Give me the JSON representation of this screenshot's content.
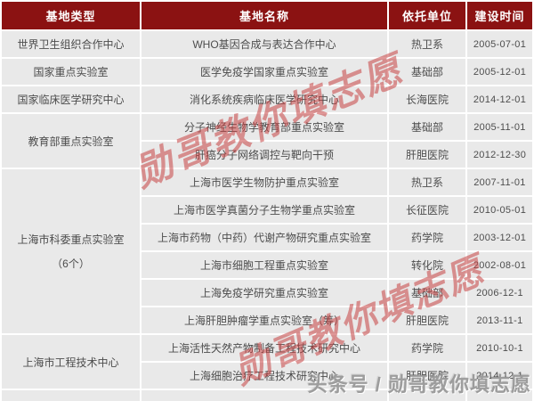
{
  "table": {
    "columns": [
      {
        "label": "基地类型"
      },
      {
        "label": "基地名称"
      },
      {
        "label": "依托单位"
      },
      {
        "label": "建设时间"
      }
    ],
    "groups": [
      {
        "type_lines": [
          "世界卫生组织合作中心"
        ],
        "rows": [
          {
            "name": "WHO基因合成与表达合作中心",
            "unit": "热卫系",
            "date": "2005-07-01"
          }
        ]
      },
      {
        "type_lines": [
          "国家重点实验室"
        ],
        "rows": [
          {
            "name": "医学免疫学国家重点实验室",
            "unit": "基础部",
            "date": "2005-12-01"
          }
        ]
      },
      {
        "type_lines": [
          "国家临床医学研究中心"
        ],
        "rows": [
          {
            "name": "消化系统疾病临床医学研究中心",
            "unit": "长海医院",
            "date": "2014-12-01"
          }
        ]
      },
      {
        "type_lines": [
          "教育部重点实验室"
        ],
        "rows": [
          {
            "name": "分子神经生物学教育部重点实验室",
            "unit": "基础部",
            "date": "2005-11-01"
          },
          {
            "name": "肝癌分子网络调控与靶向干预",
            "unit": "肝胆医院",
            "date": "2012-12-30"
          }
        ]
      },
      {
        "type_lines": [
          "上海市科委重点实验室",
          "（6个）"
        ],
        "rows": [
          {
            "name": "上海市医学生物防护重点实验室",
            "unit": "热卫系",
            "date": "2007-11-01"
          },
          {
            "name": "上海市医学真菌分子生物学重点实验室",
            "unit": "长征医院",
            "date": "2010-05-01"
          },
          {
            "name": "上海市药物（中药）代谢产物研究重点实验室",
            "unit": "药学院",
            "date": "2003-12-01"
          },
          {
            "name": "上海市细胞工程重点实验室",
            "unit": "转化院",
            "date": "2002-08-01"
          },
          {
            "name": "上海免疫学研究重点实验室",
            "unit": "基础部",
            "date": "2006-12-1"
          },
          {
            "name": "上海肝胆肿瘤学重点实验室（筹）",
            "unit": "肝胆医院",
            "date": "2013-11-1"
          }
        ]
      },
      {
        "type_lines": [
          "上海市工程技术中心"
        ],
        "rows": [
          {
            "name": "上海活性天然产物制备工程技术研究中心",
            "unit": "药学院",
            "date": "2010-10-1"
          },
          {
            "name": "上海细胞治疗工程技术研究中心",
            "unit": "肝胆医院",
            "date": "2014-12-1"
          }
        ]
      },
      {
        "type_lines": [
          ""
        ],
        "rows": [
          {
            "name": "",
            "unit": "",
            "date": ""
          }
        ]
      }
    ]
  },
  "watermarks": {
    "diagonal_1": "勋哥教你填志愿",
    "diagonal_2": "勋哥教你填志愿",
    "footer": "头条号 / 勋哥教你填志愿"
  },
  "colors": {
    "header_bg": "#8b1212",
    "header_text": "#ffffff",
    "cell_bg": "#e9e9e9",
    "cell_text": "#4d4d4d",
    "watermark_red": "rgba(199,66,66,0.55)",
    "watermark_gray": "rgba(150,150,150,0.92)"
  },
  "chart_data": {
    "type": "table",
    "title": "",
    "columns": [
      "基地类型",
      "基地名称",
      "依托单位",
      "建设时间"
    ],
    "rows": [
      [
        "世界卫生组织合作中心",
        "WHO基因合成与表达合作中心",
        "热卫系",
        "2005-07-01"
      ],
      [
        "国家重点实验室",
        "医学免疫学国家重点实验室",
        "基础部",
        "2005-12-01"
      ],
      [
        "国家临床医学研究中心",
        "消化系统疾病临床医学研究中心",
        "长海医院",
        "2014-12-01"
      ],
      [
        "教育部重点实验室",
        "分子神经生物学教育部重点实验室",
        "基础部",
        "2005-11-01"
      ],
      [
        "教育部重点实验室",
        "肝癌分子网络调控与靶向干预",
        "肝胆医院",
        "2012-12-30"
      ],
      [
        "上海市科委重点实验室（6个）",
        "上海市医学生物防护重点实验室",
        "热卫系",
        "2007-11-01"
      ],
      [
        "上海市科委重点实验室（6个）",
        "上海市医学真菌分子生物学重点实验室",
        "长征医院",
        "2010-05-01"
      ],
      [
        "上海市科委重点实验室（6个）",
        "上海市药物（中药）代谢产物研究重点实验室",
        "药学院",
        "2003-12-01"
      ],
      [
        "上海市科委重点实验室（6个）",
        "上海市细胞工程重点实验室",
        "转化院",
        "2002-08-01"
      ],
      [
        "上海市科委重点实验室（6个）",
        "上海免疫学研究重点实验室",
        "基础部",
        "2006-12-1"
      ],
      [
        "上海市科委重点实验室（6个）",
        "上海肝胆肿瘤学重点实验室（筹）",
        "肝胆医院",
        "2013-11-1"
      ],
      [
        "上海市工程技术中心",
        "上海活性天然产物制备工程技术研究中心",
        "药学院",
        "2010-10-1"
      ],
      [
        "上海市工程技术中心",
        "上海细胞治疗工程技术研究中心",
        "肝胆医院",
        "2014-12-1"
      ]
    ]
  }
}
